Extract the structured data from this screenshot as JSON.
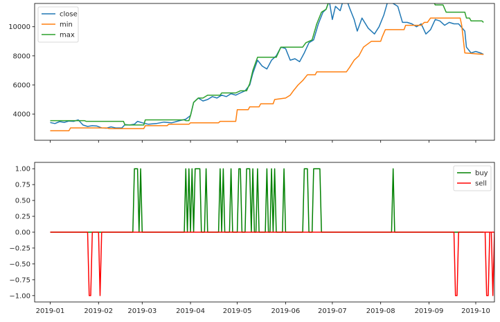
{
  "chart_data": [
    {
      "type": "line",
      "title": "",
      "xlabel": "",
      "ylabel": "",
      "x_range": [
        "2018-12-22",
        "2019-10-13"
      ],
      "ylim": [
        2200,
        11600
      ],
      "y_ticks": [
        4000,
        6000,
        8000,
        10000
      ],
      "x_ticks": [
        "2019-01",
        "2019-02",
        "2019-03",
        "2019-04",
        "2019-05",
        "2019-06",
        "2019-07",
        "2019-08",
        "2019-09",
        "2019-10"
      ],
      "show_x_tick_labels": false,
      "legend": {
        "placement": "top-left"
      },
      "grid": false,
      "series": [
        {
          "name": "close",
          "color": "#1f77b4",
          "points": [
            [
              "2019-01-01",
              3420
            ],
            [
              "2019-01-04",
              3350
            ],
            [
              "2019-01-07",
              3480
            ],
            [
              "2019-01-10",
              3430
            ],
            [
              "2019-01-13",
              3520
            ],
            [
              "2019-01-16",
              3500
            ],
            [
              "2019-01-19",
              3600
            ],
            [
              "2019-01-22",
              3250
            ],
            [
              "2019-01-25",
              3150
            ],
            [
              "2019-01-28",
              3200
            ],
            [
              "2019-01-31",
              3180
            ],
            [
              "2019-02-03",
              3050
            ],
            [
              "2019-02-06",
              3030
            ],
            [
              "2019-02-09",
              3120
            ],
            [
              "2019-02-12",
              3050
            ],
            [
              "2019-02-16",
              3050
            ],
            [
              "2019-02-18",
              3280
            ],
            [
              "2019-02-21",
              3250
            ],
            [
              "2019-02-24",
              3300
            ],
            [
              "2019-02-26",
              3500
            ],
            [
              "2019-03-01",
              3400
            ],
            [
              "2019-03-05",
              3300
            ],
            [
              "2019-03-10",
              3350
            ],
            [
              "2019-03-15",
              3450
            ],
            [
              "2019-03-20",
              3400
            ],
            [
              "2019-03-25",
              3550
            ],
            [
              "2019-03-29",
              3650
            ],
            [
              "2019-04-01",
              3900
            ],
            [
              "2019-04-03",
              4800
            ],
            [
              "2019-04-06",
              5100
            ],
            [
              "2019-04-09",
              4900
            ],
            [
              "2019-04-12",
              5000
            ],
            [
              "2019-04-15",
              5200
            ],
            [
              "2019-04-18",
              5100
            ],
            [
              "2019-04-21",
              5300
            ],
            [
              "2019-04-24",
              5200
            ],
            [
              "2019-04-27",
              5400
            ],
            [
              "2019-04-30",
              5300
            ],
            [
              "2019-05-03",
              5450
            ],
            [
              "2019-05-06",
              5600
            ],
            [
              "2019-05-09",
              6000
            ],
            [
              "2019-05-11",
              6800
            ],
            [
              "2019-05-14",
              7700
            ],
            [
              "2019-05-17",
              7300
            ],
            [
              "2019-05-20",
              7100
            ],
            [
              "2019-05-23",
              7700
            ],
            [
              "2019-05-26",
              8000
            ],
            [
              "2019-05-29",
              8600
            ],
            [
              "2019-06-01",
              8500
            ],
            [
              "2019-06-04",
              7700
            ],
            [
              "2019-06-07",
              7800
            ],
            [
              "2019-06-10",
              7600
            ],
            [
              "2019-06-13",
              8200
            ],
            [
              "2019-06-16",
              8900
            ],
            [
              "2019-06-19",
              9100
            ],
            [
              "2019-06-22",
              10200
            ],
            [
              "2019-06-25",
              11000
            ],
            [
              "2019-06-27",
              11200
            ],
            [
              "2019-06-29",
              11800
            ],
            [
              "2019-07-01",
              10500
            ],
            [
              "2019-07-03",
              11400
            ],
            [
              "2019-07-06",
              11100
            ],
            [
              "2019-07-09",
              12200
            ],
            [
              "2019-07-12",
              11300
            ],
            [
              "2019-07-15",
              10500
            ],
            [
              "2019-07-17",
              9700
            ],
            [
              "2019-07-20",
              10600
            ],
            [
              "2019-07-24",
              9900
            ],
            [
              "2019-07-28",
              9500
            ],
            [
              "2019-07-31",
              10000
            ],
            [
              "2019-08-03",
              10800
            ],
            [
              "2019-08-06",
              11900
            ],
            [
              "2019-08-09",
              11600
            ],
            [
              "2019-08-12",
              11400
            ],
            [
              "2019-08-15",
              10300
            ],
            [
              "2019-08-18",
              10300
            ],
            [
              "2019-08-21",
              10200
            ],
            [
              "2019-08-24",
              10000
            ],
            [
              "2019-08-27",
              10200
            ],
            [
              "2019-08-30",
              9500
            ],
            [
              "2019-09-02",
              9800
            ],
            [
              "2019-09-05",
              10500
            ],
            [
              "2019-09-08",
              10400
            ],
            [
              "2019-09-11",
              10100
            ],
            [
              "2019-09-14",
              10300
            ],
            [
              "2019-09-17",
              10200
            ],
            [
              "2019-09-20",
              10200
            ],
            [
              "2019-09-24",
              9700
            ],
            [
              "2019-09-25",
              8600
            ],
            [
              "2019-09-28",
              8200
            ],
            [
              "2019-10-01",
              8300
            ],
            [
              "2019-10-04",
              8200
            ],
            [
              "2019-10-06",
              8100
            ]
          ]
        },
        {
          "name": "min",
          "color": "#ff7f0e",
          "points": [
            [
              "2019-01-01",
              2850
            ],
            [
              "2019-01-13",
              2850
            ],
            [
              "2019-01-14",
              3050
            ],
            [
              "2019-02-06",
              3050
            ],
            [
              "2019-02-08",
              3000
            ],
            [
              "2019-03-02",
              3000
            ],
            [
              "2019-03-03",
              3200
            ],
            [
              "2019-03-17",
              3200
            ],
            [
              "2019-03-18",
              3300
            ],
            [
              "2019-03-31",
              3300
            ],
            [
              "2019-04-01",
              3400
            ],
            [
              "2019-04-19",
              3400
            ],
            [
              "2019-04-20",
              3500
            ],
            [
              "2019-04-30",
              3500
            ],
            [
              "2019-05-01",
              4300
            ],
            [
              "2019-05-08",
              4300
            ],
            [
              "2019-05-09",
              4500
            ],
            [
              "2019-05-15",
              4500
            ],
            [
              "2019-05-16",
              4700
            ],
            [
              "2019-05-24",
              4700
            ],
            [
              "2019-05-25",
              5000
            ],
            [
              "2019-06-01",
              5100
            ],
            [
              "2019-06-04",
              5300
            ],
            [
              "2019-06-06",
              5600
            ],
            [
              "2019-06-09",
              6000
            ],
            [
              "2019-06-12",
              6300
            ],
            [
              "2019-06-15",
              6700
            ],
            [
              "2019-06-20",
              6700
            ],
            [
              "2019-06-21",
              6900
            ],
            [
              "2019-07-10",
              6900
            ],
            [
              "2019-07-12",
              7200
            ],
            [
              "2019-07-15",
              7700
            ],
            [
              "2019-07-18",
              8000
            ],
            [
              "2019-07-21",
              8600
            ],
            [
              "2019-07-26",
              9000
            ],
            [
              "2019-08-01",
              9000
            ],
            [
              "2019-08-02",
              9300
            ],
            [
              "2019-08-04",
              9800
            ],
            [
              "2019-08-16",
              9800
            ],
            [
              "2019-08-17",
              10100
            ],
            [
              "2019-08-27",
              10100
            ],
            [
              "2019-08-29",
              10300
            ],
            [
              "2019-08-31",
              10300
            ],
            [
              "2019-09-02",
              10600
            ],
            [
              "2019-09-21",
              10600
            ],
            [
              "2019-09-22",
              10100
            ],
            [
              "2019-09-24",
              8200
            ],
            [
              "2019-10-06",
              8100
            ]
          ]
        },
        {
          "name": "max",
          "color": "#2ca02c",
          "points": [
            [
              "2019-01-01",
              3550
            ],
            [
              "2019-01-23",
              3550
            ],
            [
              "2019-01-24",
              3500
            ],
            [
              "2019-02-17",
              3500
            ],
            [
              "2019-02-18",
              3250
            ],
            [
              "2019-03-02",
              3250
            ],
            [
              "2019-03-03",
              3600
            ],
            [
              "2019-03-28",
              3600
            ],
            [
              "2019-03-29",
              3550
            ],
            [
              "2019-03-31",
              3550
            ],
            [
              "2019-04-01",
              3900
            ],
            [
              "2019-04-03",
              4800
            ],
            [
              "2019-04-06",
              5100
            ],
            [
              "2019-04-09",
              5100
            ],
            [
              "2019-04-12",
              5300
            ],
            [
              "2019-04-20",
              5300
            ],
            [
              "2019-04-21",
              5450
            ],
            [
              "2019-04-30",
              5450
            ],
            [
              "2019-05-03",
              5600
            ],
            [
              "2019-05-07",
              5600
            ],
            [
              "2019-05-09",
              6100
            ],
            [
              "2019-05-11",
              7000
            ],
            [
              "2019-05-14",
              7900
            ],
            [
              "2019-05-26",
              7900
            ],
            [
              "2019-05-29",
              8600
            ],
            [
              "2019-06-12",
              8600
            ],
            [
              "2019-06-14",
              8900
            ],
            [
              "2019-06-18",
              9100
            ],
            [
              "2019-06-21",
              10200
            ],
            [
              "2019-06-24",
              11000
            ],
            [
              "2019-06-27",
              11200
            ],
            [
              "2019-06-29",
              11800
            ],
            [
              "2019-07-01",
              11800
            ],
            [
              "2019-07-03",
              11900
            ],
            [
              "2019-07-09",
              12200
            ],
            [
              "2019-08-10",
              12200
            ],
            [
              "2019-08-11",
              11900
            ],
            [
              "2019-09-03",
              11900
            ],
            [
              "2019-09-05",
              11500
            ],
            [
              "2019-09-10",
              11500
            ],
            [
              "2019-09-12",
              11000
            ],
            [
              "2019-09-24",
              11000
            ],
            [
              "2019-09-25",
              10600
            ],
            [
              "2019-09-27",
              10600
            ],
            [
              "2019-09-28",
              10400
            ],
            [
              "2019-10-05",
              10400
            ],
            [
              "2019-10-06",
              10300
            ]
          ]
        }
      ]
    },
    {
      "type": "line",
      "title": "",
      "xlabel": "",
      "ylabel": "",
      "x_range": [
        "2018-12-22",
        "2019-10-13"
      ],
      "ylim": [
        -1.1,
        1.1
      ],
      "y_ticks": [
        -1.0,
        -0.75,
        -0.5,
        -0.25,
        0.0,
        0.25,
        0.5,
        0.75,
        1.0
      ],
      "y_tick_labels": [
        "−1.00",
        "−0.75",
        "−0.50",
        "−0.25",
        "0.00",
        "0.25",
        "0.50",
        "0.75",
        "1.00"
      ],
      "x_ticks": [
        "2019-01",
        "2019-02",
        "2019-03",
        "2019-04",
        "2019-05",
        "2019-06",
        "2019-07",
        "2019-08",
        "2019-09",
        "2019-10"
      ],
      "x_tick_labels": [
        "2019-01",
        "2019-02",
        "2019-03",
        "2019-04",
        "2019-05",
        "2019-06",
        "2019-07",
        "2019-08",
        "2019-09",
        "2019-10"
      ],
      "show_x_tick_labels": true,
      "legend": {
        "placement": "top-right"
      },
      "grid": false,
      "series": [
        {
          "name": "buy",
          "color": "#008000",
          "pulses": [
            [
              "2019-02-24",
              "2019-02-26"
            ],
            [
              "2019-02-28",
              "2019-02-28"
            ],
            [
              "2019-03-29",
              "2019-03-29"
            ],
            [
              "2019-03-31",
              "2019-03-31"
            ],
            [
              "2019-04-02",
              "2019-04-02"
            ],
            [
              "2019-04-04",
              "2019-04-07"
            ],
            [
              "2019-04-11",
              "2019-04-11"
            ],
            [
              "2019-04-20",
              "2019-04-20"
            ],
            [
              "2019-04-22",
              "2019-04-22"
            ],
            [
              "2019-04-27",
              "2019-04-27"
            ],
            [
              "2019-05-02",
              "2019-05-03"
            ],
            [
              "2019-05-07",
              "2019-05-09"
            ],
            [
              "2019-05-11",
              "2019-05-11"
            ],
            [
              "2019-05-14",
              "2019-05-14"
            ],
            [
              "2019-05-20",
              "2019-05-20"
            ],
            [
              "2019-05-23",
              "2019-05-23"
            ],
            [
              "2019-05-25",
              "2019-05-25"
            ],
            [
              "2019-05-31",
              "2019-05-31"
            ],
            [
              "2019-06-13",
              "2019-06-15"
            ],
            [
              "2019-06-19",
              "2019-06-23"
            ],
            [
              "2019-08-09",
              "2019-08-09"
            ]
          ]
        },
        {
          "name": "sell",
          "color": "#ff0000",
          "pulses": [
            [
              "2019-01-26",
              "2019-01-27"
            ],
            [
              "2019-02-02",
              "2019-02-02"
            ],
            [
              "2019-09-18",
              "2019-09-19"
            ],
            [
              "2019-10-08",
              "2019-10-09"
            ],
            [
              "2019-10-12",
              "2019-10-12"
            ]
          ]
        }
      ]
    }
  ]
}
